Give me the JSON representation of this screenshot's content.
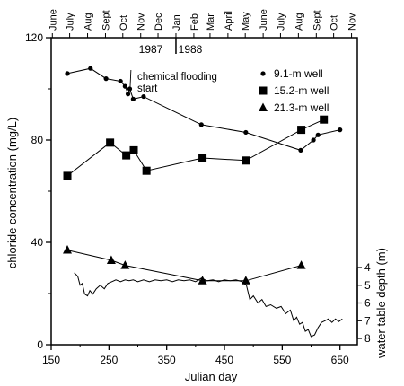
{
  "chart_data": {
    "type": "line",
    "title": "",
    "xlabel": "Julian day",
    "ylabel": "chloride concentration (mg/L)",
    "xlim": [
      150,
      680
    ],
    "ylim": [
      0,
      120
    ],
    "x_ticks": [
      150,
      250,
      350,
      450,
      550,
      650
    ],
    "y_ticks": [
      0,
      40,
      80,
      120
    ],
    "grid": false,
    "legend_position": "top-right",
    "top_axis": {
      "months": [
        {
          "label": "June",
          "day": 152
        },
        {
          "label": "July",
          "day": 182
        },
        {
          "label": "Aug",
          "day": 213
        },
        {
          "label": "Sept",
          "day": 244
        },
        {
          "label": "Oct",
          "day": 274
        },
        {
          "label": "Nov",
          "day": 305
        },
        {
          "label": "Dec",
          "day": 335
        },
        {
          "label": "Jan",
          "day": 366
        },
        {
          "label": "Feb",
          "day": 397
        },
        {
          "label": "Mar",
          "day": 425
        },
        {
          "label": "April",
          "day": 456
        },
        {
          "label": "May",
          "day": 486
        },
        {
          "label": "June",
          "day": 517
        },
        {
          "label": "July",
          "day": 547
        },
        {
          "label": "Aug",
          "day": 578
        },
        {
          "label": "Sept",
          "day": 609
        },
        {
          "label": "Oct",
          "day": 639
        },
        {
          "label": "Nov",
          "day": 670
        }
      ],
      "year_divider_day": 366,
      "years": [
        "1987",
        "1988"
      ]
    },
    "annotation": "chemical flooding start",
    "annotation_day": 285,
    "series": [
      {
        "name": "9.1-m well",
        "marker": "circle",
        "x": [
          178,
          218,
          245,
          270,
          278,
          283,
          286,
          292,
          310,
          410,
          487,
          582,
          604,
          612,
          650
        ],
        "y": [
          106,
          108,
          104,
          103,
          101,
          98,
          100,
          96,
          97,
          86,
          83,
          76,
          80,
          82,
          84
        ]
      },
      {
        "name": "15.2-m well",
        "marker": "square",
        "x": [
          178,
          252,
          280,
          293,
          315,
          412,
          487,
          583,
          622
        ],
        "y": [
          66,
          79,
          74,
          76,
          68,
          73,
          72,
          84,
          88
        ]
      },
      {
        "name": "21.3-m well",
        "marker": "triangle",
        "x": [
          178,
          254,
          278,
          412,
          487,
          583
        ],
        "y": [
          37,
          33,
          31,
          25,
          25,
          31
        ]
      }
    ],
    "water_table": {
      "ylabel": "water table depth (m)",
      "ticks": [
        4,
        5,
        6,
        7,
        8
      ],
      "x": [
        190,
        196,
        200,
        204,
        208,
        213,
        217,
        222,
        228,
        235,
        242,
        248,
        255,
        262,
        270,
        278,
        285,
        292,
        300,
        310,
        320,
        330,
        340,
        350,
        360,
        370,
        380,
        390,
        400,
        410,
        420,
        430,
        440,
        450,
        460,
        470,
        480,
        488,
        494,
        500,
        508,
        515,
        522,
        530,
        540,
        548,
        556,
        564,
        570,
        575,
        580,
        585,
        590,
        595,
        600,
        606,
        612,
        618,
        624,
        630,
        636,
        642,
        648,
        654
      ],
      "y": [
        4.3,
        4.5,
        5.0,
        4.9,
        5.5,
        5.6,
        5.3,
        5.5,
        5.2,
        5.0,
        5.2,
        4.9,
        4.8,
        4.7,
        4.8,
        4.7,
        4.75,
        4.7,
        4.8,
        4.7,
        4.8,
        4.7,
        4.75,
        4.7,
        4.8,
        4.7,
        4.75,
        4.7,
        4.8,
        4.6,
        4.75,
        4.7,
        4.8,
        4.7,
        4.75,
        4.7,
        4.8,
        5.0,
        5.8,
        5.6,
        6.0,
        5.8,
        6.2,
        6.1,
        6.3,
        6.2,
        6.6,
        6.4,
        7.0,
        6.8,
        7.2,
        7.1,
        7.6,
        7.5,
        7.9,
        7.8,
        7.4,
        7.1,
        7.0,
        6.9,
        7.1,
        6.9,
        7.05,
        6.9
      ]
    }
  }
}
